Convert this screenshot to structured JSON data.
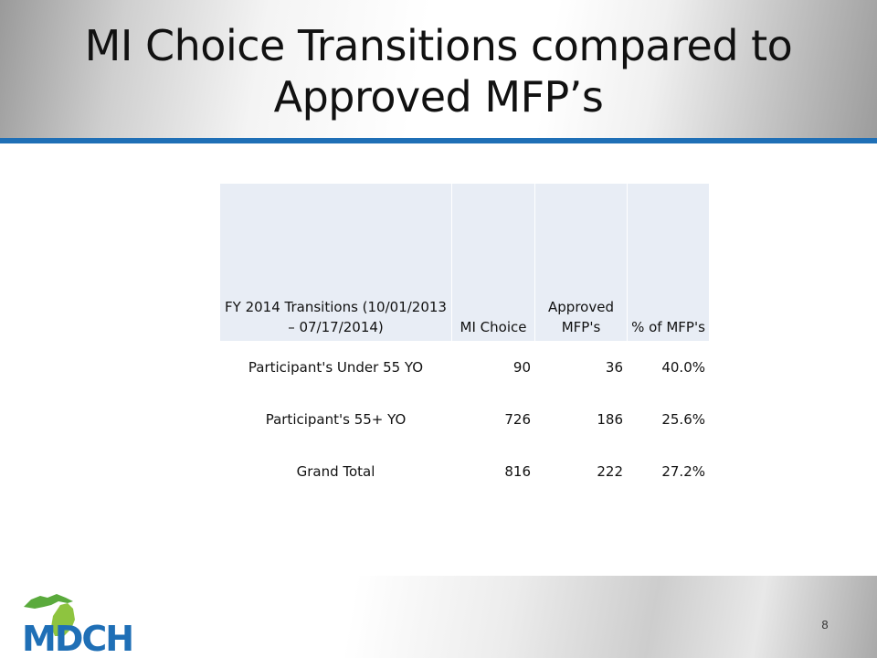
{
  "slide": {
    "title": "MI Choice Transitions compared to Approved MFP’s",
    "page_number": "8"
  },
  "table": {
    "headers": [
      "FY 2014 Transitions (10/01/2013 – 07/17/2014)",
      "MI Choice",
      "Approved MFP's",
      "% of MFP's"
    ],
    "rows": [
      [
        "Participant's Under 55 YO",
        "90",
        "36",
        "40.0%"
      ],
      [
        "Participant's  55+ YO",
        "726",
        "186",
        "25.6%"
      ],
      [
        "Grand Total",
        "816",
        "222",
        "27.2%"
      ]
    ]
  },
  "logo": {
    "text": "MDCH",
    "colors": {
      "letters": "#1f6fb6",
      "state_shape": "#5aaa3c",
      "tile": "#8ec43f"
    }
  },
  "colors": {
    "header_rule": "#1f6fb6",
    "table_header_fill": "#e8edf5"
  }
}
